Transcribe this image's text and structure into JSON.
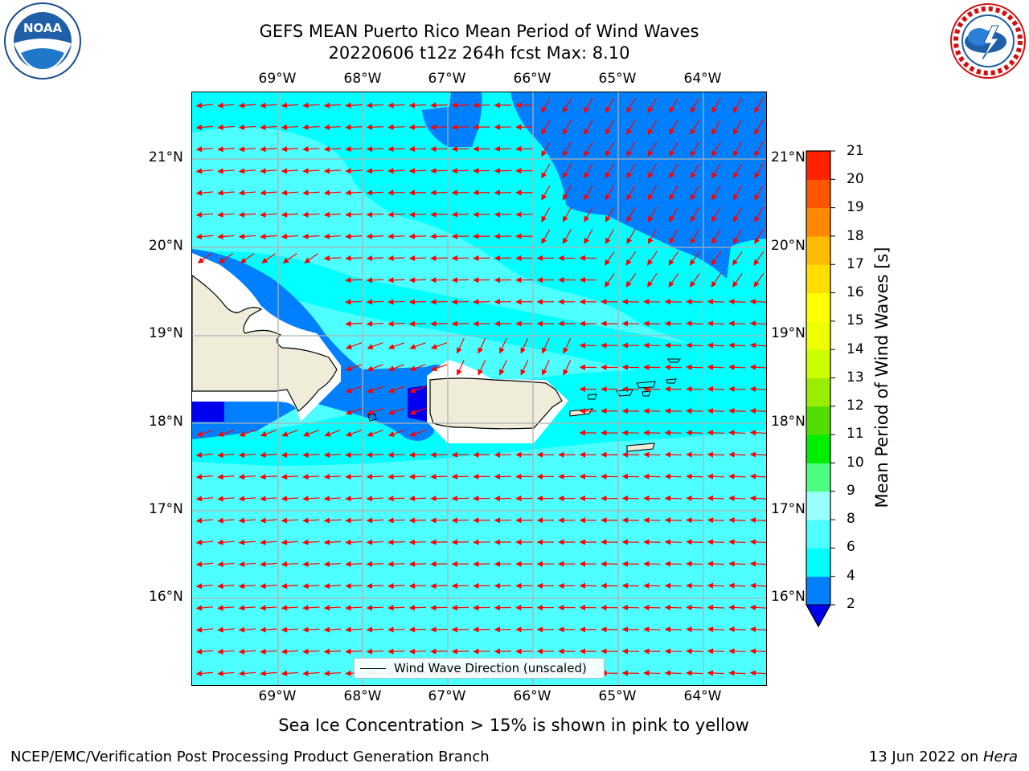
{
  "header": {
    "title_line1": "GEFS MEAN Puerto Rico Mean Period of Wind Waves",
    "title_line2": "20220606 t12z 264h fcst   Max: 8.10"
  },
  "logos": {
    "left": "noaa-logo",
    "right": "national-weather-service-logo"
  },
  "map": {
    "lon_labels": [
      "69°W",
      "68°W",
      "67°W",
      "66°W",
      "65°W",
      "64°W"
    ],
    "lat_labels": [
      "21°N",
      "20°N",
      "19°N",
      "18°N",
      "17°N",
      "16°N"
    ],
    "legend_label": "Wind Wave Direction (unscaled)",
    "colors": {
      "land": "#efedda",
      "ocean_4_6": "#00ffff",
      "ocean_6_8": "#4dffff",
      "ocean_2_4": "#0080ff",
      "ocean_lt2": "#0000ee",
      "arrow": "#ff0000",
      "gridline": "#b0b0b0"
    }
  },
  "colorbar": {
    "label": "Mean Period of Wind Waves [s]",
    "tick_labels": [
      "2",
      "4",
      "6",
      "8",
      "9",
      "10",
      "11",
      "12",
      "13",
      "14",
      "15",
      "16",
      "17",
      "18",
      "19",
      "20",
      "21"
    ],
    "colors": [
      "#0080ff",
      "#00ffff",
      "#4dffff",
      "#99ffff",
      "#4dff80",
      "#00ee00",
      "#50dd00",
      "#99ee00",
      "#ccff00",
      "#eeff00",
      "#ffff00",
      "#ffdd00",
      "#ffbb00",
      "#ff8800",
      "#ff5500",
      "#ff2200"
    ],
    "under_color": "#0000ee"
  },
  "subtitle": "Sea Ice Concentration > 15% is shown in pink to yellow",
  "footer": {
    "left": "NCEP/EMC/Verification Post Processing Product Generation Branch",
    "date": "13 Jun 2022 on ",
    "machine": "Hera"
  }
}
